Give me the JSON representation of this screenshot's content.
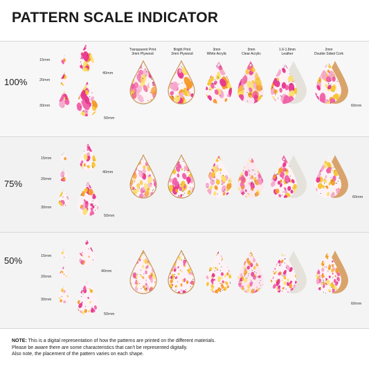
{
  "title": "PATTERN SCALE INDICATOR",
  "materials": [
    {
      "line1": "Transparent Print",
      "line2": "3mm Plywood"
    },
    {
      "line1": "Bright Print",
      "line2": "3mm Plywood"
    },
    {
      "line1": "3mm",
      "line2": "White Acrylic"
    },
    {
      "line1": "3mm",
      "line2": "Clear Acrylic"
    },
    {
      "line1": "1.6-1.8mm",
      "line2": "Leather"
    },
    {
      "line1": "2mm",
      "line2": "Double Sided Cork"
    }
  ],
  "rows": [
    {
      "scale": "100%",
      "sizes": [
        "15mm",
        "20mm",
        "30mm",
        "40mm",
        "50mm",
        "60mm"
      ]
    },
    {
      "scale": "75%",
      "sizes": [
        "15mm",
        "20mm",
        "30mm",
        "40mm",
        "50mm",
        "60mm"
      ]
    },
    {
      "scale": "50%",
      "sizes": [
        "15mm",
        "20mm",
        "30mm",
        "40mm",
        "50mm",
        "60mm"
      ]
    }
  ],
  "note": {
    "label": "NOTE:",
    "line1": " This is a digital representation of how the patterns are printed on the different materials.",
    "line2": "Please be aware there are some characteristics that can't be represented digitally.",
    "line3": "Also note, the placement of the pattern varies on each shape."
  },
  "colors": {
    "pink": "#e8368f",
    "hotpink": "#f05fa6",
    "orange": "#f59a2b",
    "yellow": "#f7c431",
    "paleyellow": "#fbe06b",
    "lightpink": "#f6a8cc",
    "wood": "#c9965c",
    "cork": "#d9a46b",
    "leather": "#e4e2da"
  }
}
